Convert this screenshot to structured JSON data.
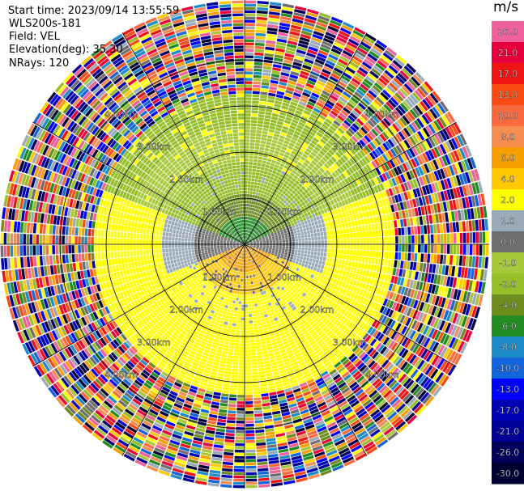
{
  "header": {
    "start_time": "Start time: 2023/09/14 13:55:59",
    "instrument": "WLS200s-181",
    "field": "Field: VEL",
    "elevation": "Elevation(deg): 35.30",
    "nrays": "NRays: 120"
  },
  "colorbar": {
    "unit": "m/s",
    "levels": [
      {
        "label": "26.0",
        "color": "#f0609a"
      },
      {
        "label": "21.0",
        "color": "#e8003c"
      },
      {
        "label": "17.0",
        "color": "#ee1414"
      },
      {
        "label": "13.0",
        "color": "#f84c14"
      },
      {
        "label": "10.0",
        "color": "#fa6a40"
      },
      {
        "label": "8.0",
        "color": "#f58c50"
      },
      {
        "label": "6.0",
        "color": "#f5a000"
      },
      {
        "label": "4.0",
        "color": "#ffc800"
      },
      {
        "label": "2.0",
        "color": "#ffff00"
      },
      {
        "label": "1.0",
        "color": "#9aaab8"
      },
      {
        "label": "0.0",
        "color": "#6e6e6e"
      },
      {
        "label": "-1.0",
        "color": "#a8c83c"
      },
      {
        "label": "-2.0",
        "color": "#96be28"
      },
      {
        "label": "-4.0",
        "color": "#6e8c1e"
      },
      {
        "label": "-6.0",
        "color": "#228b22"
      },
      {
        "label": "-8.0",
        "color": "#1e8cc8"
      },
      {
        "label": "-10.0",
        "color": "#1464dc"
      },
      {
        "label": "-13.0",
        "color": "#0000ff"
      },
      {
        "label": "-17.0",
        "color": "#0000b4"
      },
      {
        "label": "-21.0",
        "color": "#000096"
      },
      {
        "label": "-26.0",
        "color": "#00005a"
      },
      {
        "label": "-30.0",
        "color": "#000032"
      }
    ]
  },
  "chart_data": {
    "type": "heatmap",
    "plot": "PPI radial velocity",
    "range_rings_km": [
      1.0,
      2.0,
      3.0,
      4.0
    ],
    "ring_labels": [
      "1.00km",
      "2.00km",
      "3.00km",
      "4.00km"
    ],
    "spokes_deg": [
      0,
      30,
      60,
      90,
      120,
      150,
      180,
      210,
      240,
      270,
      300,
      330
    ],
    "max_range_km": 5.3,
    "nrays": 120,
    "rings": [
      {
        "to_km": 0.55,
        "north": "-6.0",
        "south": "6.0",
        "side": "0.0"
      },
      {
        "to_km": 1.05,
        "north": "-4.0",
        "south": "4.0",
        "side": "0.0"
      },
      {
        "to_km": 1.8,
        "north": "-2.0",
        "south": "2.0",
        "side": "1.0"
      },
      {
        "to_km": 2.5,
        "north": "-1.0",
        "south": "2.0",
        "side": "2.0"
      },
      {
        "to_km": 3.2,
        "north": "-2.0",
        "south": "2.0",
        "side": "2.0"
      }
    ],
    "outer_region": "noise (mixed colors) beyond ~3.2 km"
  }
}
